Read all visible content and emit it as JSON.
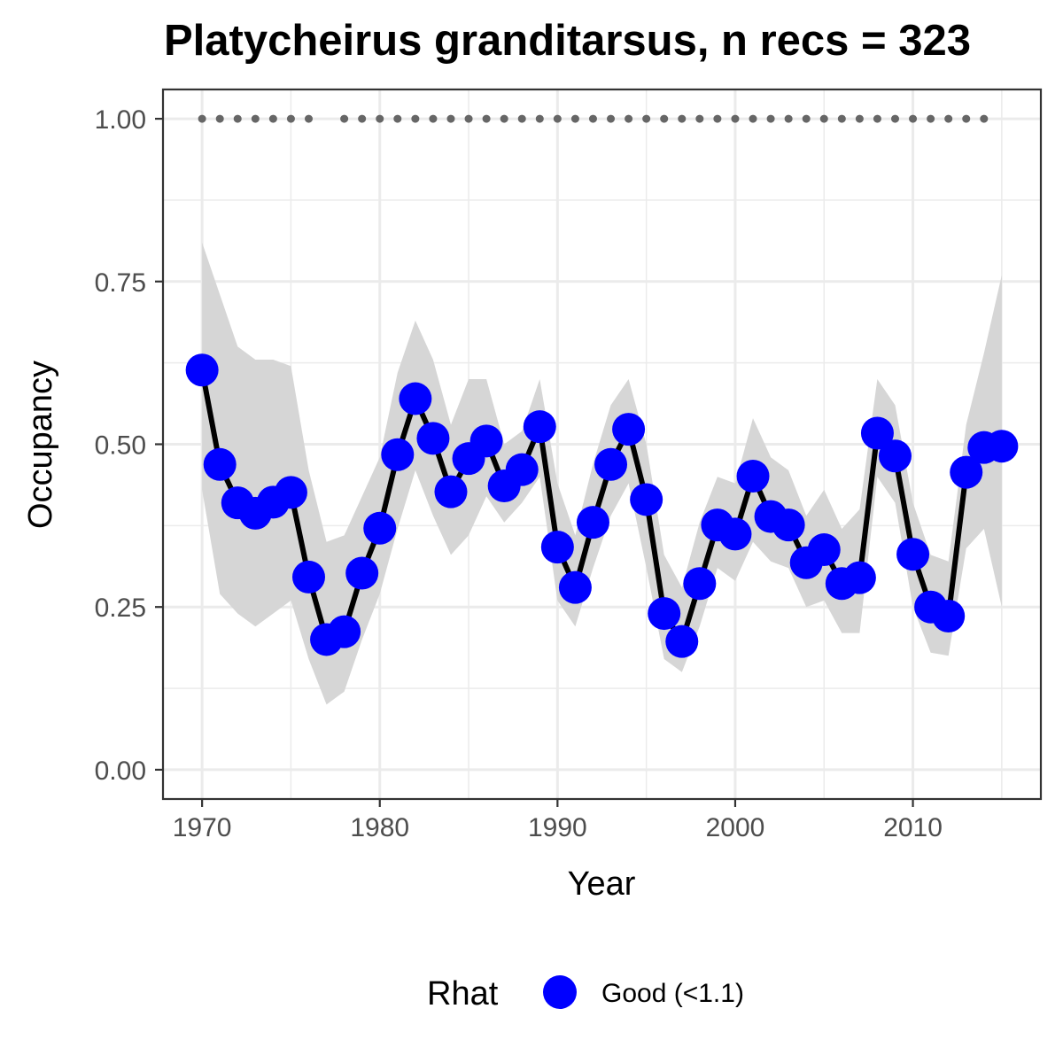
{
  "chart_data": {
    "type": "line",
    "title": "Platycheirus granditarsus, n recs = 323",
    "xlabel": "Year",
    "ylabel": "Occupancy",
    "xlim": [
      1967.8,
      2017.2
    ],
    "ylim": [
      -0.045,
      1.045
    ],
    "x_ticks": [
      1970,
      1980,
      1990,
      2000,
      2010
    ],
    "x_tick_labels": [
      "1970",
      "1980",
      "1990",
      "2000",
      "2010"
    ],
    "y_ticks": [
      0,
      0.25,
      0.5,
      0.75,
      1.0
    ],
    "y_tick_labels": [
      "0.00",
      "0.25",
      "0.50",
      "0.75",
      "1.00"
    ],
    "grid": true,
    "legend": {
      "title": "Rhat",
      "position": "bottom",
      "entries": [
        {
          "label": "Good (<1.1)",
          "color": "#0000ff"
        }
      ]
    },
    "series": [
      {
        "name": "Good (<1.1)",
        "color": "#0000ff",
        "x": [
          1970,
          1971,
          1972,
          1973,
          1974,
          1975,
          1976,
          1977,
          1978,
          1979,
          1980,
          1981,
          1982,
          1983,
          1984,
          1985,
          1986,
          1987,
          1988,
          1989,
          1990,
          1991,
          1992,
          1993,
          1994,
          1995,
          1996,
          1997,
          1998,
          1999,
          2000,
          2001,
          2002,
          2003,
          2004,
          2005,
          2006,
          2007,
          2008,
          2009,
          2010,
          2011,
          2012,
          2013,
          2014,
          2015
        ],
        "y": [
          0.614,
          0.469,
          0.41,
          0.394,
          0.411,
          0.426,
          0.296,
          0.2,
          0.212,
          0.302,
          0.371,
          0.484,
          0.57,
          0.509,
          0.427,
          0.478,
          0.505,
          0.436,
          0.461,
          0.527,
          0.342,
          0.28,
          0.38,
          0.469,
          0.523,
          0.415,
          0.24,
          0.197,
          0.286,
          0.376,
          0.362,
          0.451,
          0.389,
          0.376,
          0.318,
          0.338,
          0.286,
          0.295,
          0.517,
          0.482,
          0.331,
          0.25,
          0.236,
          0.457,
          0.495,
          0.497
        ],
        "lower": [
          0.43,
          0.27,
          0.24,
          0.22,
          0.24,
          0.26,
          0.17,
          0.1,
          0.12,
          0.2,
          0.27,
          0.37,
          0.46,
          0.39,
          0.33,
          0.36,
          0.42,
          0.38,
          0.41,
          0.45,
          0.26,
          0.22,
          0.31,
          0.39,
          0.44,
          0.31,
          0.17,
          0.15,
          0.22,
          0.31,
          0.29,
          0.35,
          0.32,
          0.31,
          0.25,
          0.26,
          0.21,
          0.21,
          0.45,
          0.41,
          0.25,
          0.18,
          0.175,
          0.34,
          0.37,
          0.25
        ],
        "upper": [
          0.81,
          0.73,
          0.65,
          0.63,
          0.63,
          0.62,
          0.46,
          0.35,
          0.36,
          0.42,
          0.48,
          0.61,
          0.69,
          0.63,
          0.53,
          0.6,
          0.6,
          0.5,
          0.52,
          0.6,
          0.44,
          0.36,
          0.47,
          0.56,
          0.6,
          0.5,
          0.33,
          0.28,
          0.38,
          0.45,
          0.44,
          0.54,
          0.48,
          0.46,
          0.39,
          0.43,
          0.37,
          0.4,
          0.6,
          0.56,
          0.41,
          0.33,
          0.32,
          0.53,
          0.64,
          0.76
        ]
      }
    ],
    "record_years": [
      1970,
      1971,
      1972,
      1973,
      1974,
      1975,
      1976,
      1978,
      1979,
      1980,
      1981,
      1982,
      1983,
      1984,
      1985,
      1986,
      1987,
      1988,
      1989,
      1990,
      1991,
      1992,
      1993,
      1994,
      1995,
      1996,
      1997,
      1998,
      1999,
      2000,
      2001,
      2002,
      2003,
      2004,
      2005,
      2006,
      2007,
      2008,
      2009,
      2010,
      2011,
      2012,
      2013,
      2014
    ],
    "record_y": 1.0,
    "colors": {
      "points": "#0000ff",
      "line": "#000000",
      "ribbon": "#d6d6d6",
      "records": "#666666",
      "grid": "#ebebeb",
      "panel_border": "#333333"
    }
  }
}
